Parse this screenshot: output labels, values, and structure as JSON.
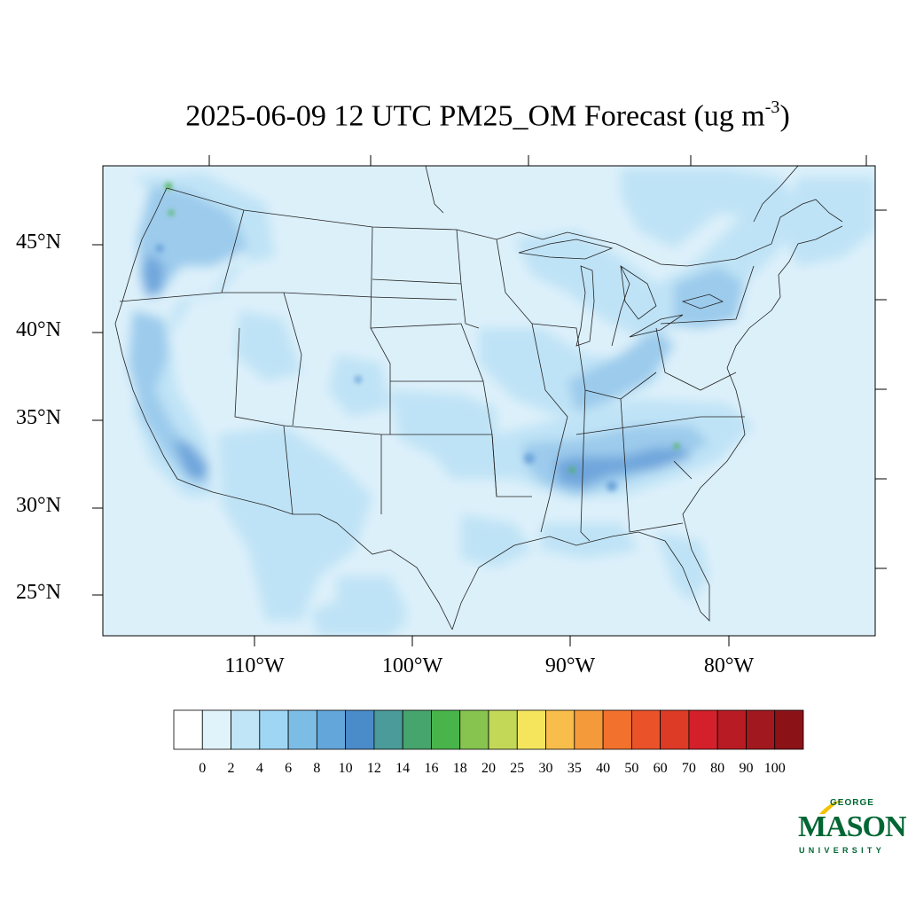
{
  "title": {
    "main": "2025-06-09 12 UTC PM25_OM Forecast (ug m",
    "sup": "-3",
    "close": ")"
  },
  "lat_labels": [
    "45°N",
    "40°N",
    "35°N",
    "30°N",
    "25°N"
  ],
  "lon_labels": [
    "110°W",
    "100°W",
    "90°W",
    "80°W"
  ],
  "colorbar": {
    "labels": [
      "0",
      "2",
      "4",
      "6",
      "8",
      "10",
      "12",
      "14",
      "16",
      "18",
      "20",
      "25",
      "30",
      "35",
      "40",
      "50",
      "60",
      "70",
      "80",
      "90",
      "100"
    ],
    "colors": [
      "#ffffff",
      "#e0f3fb",
      "#bfe5f7",
      "#9fd6f3",
      "#7cbde6",
      "#62a6da",
      "#4a8bca",
      "#4a9b9a",
      "#46a46d",
      "#48b44a",
      "#86c34f",
      "#c3d856",
      "#f4e55d",
      "#f8bd4a",
      "#f59a3a",
      "#f2712c",
      "#ea5229",
      "#de3b26",
      "#d3202a",
      "#b81b23",
      "#a1181e",
      "#8b1318"
    ]
  },
  "map": {
    "ocean_color": "#dcf0fa",
    "low_color": "#bfe3f6",
    "mid_color": "#9ccbec",
    "high_color": "#6fa6dc",
    "green_color": "#48b44a"
  },
  "logo": {
    "line1": "GEORGE",
    "line2": "MASON",
    "line3": "UNIVERSITY"
  }
}
